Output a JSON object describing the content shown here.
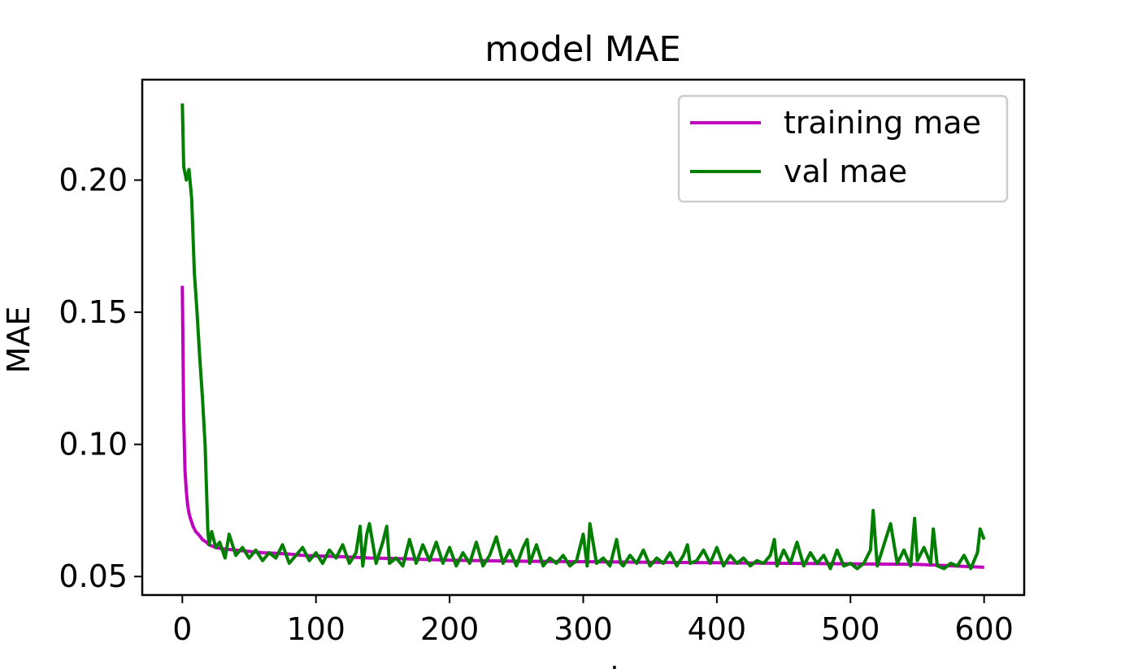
{
  "chart_data": {
    "type": "line",
    "title": "model MAE",
    "xlabel": "epoch",
    "ylabel": "MAE",
    "xlim": [
      -30,
      630
    ],
    "ylim": [
      0.043,
      0.238
    ],
    "xticks": [
      0,
      100,
      200,
      300,
      400,
      500,
      600
    ],
    "yticks": [
      0.05,
      0.1,
      0.15,
      0.2
    ],
    "ytick_labels": [
      "0.05",
      "0.10",
      "0.15",
      "0.20"
    ],
    "grid": false,
    "legend_position": "upper right",
    "series": [
      {
        "name": "training mae",
        "color": "#bf00bf",
        "x": [
          0,
          1,
          2,
          3,
          4,
          5,
          6,
          8,
          10,
          12,
          15,
          18,
          20,
          25,
          30,
          40,
          50,
          60,
          70,
          80,
          90,
          100,
          120,
          140,
          160,
          180,
          200,
          250,
          300,
          350,
          400,
          450,
          500,
          550,
          600
        ],
        "y": [
          0.16,
          0.11,
          0.09,
          0.082,
          0.077,
          0.074,
          0.072,
          0.069,
          0.067,
          0.066,
          0.064,
          0.063,
          0.062,
          0.061,
          0.0605,
          0.06,
          0.0595,
          0.059,
          0.0588,
          0.0585,
          0.058,
          0.0578,
          0.0575,
          0.057,
          0.0568,
          0.0565,
          0.0562,
          0.0558,
          0.0556,
          0.0554,
          0.0552,
          0.055,
          0.0548,
          0.0546,
          0.0535
        ]
      },
      {
        "name": "val mae",
        "color": "#007f00",
        "x": [
          0,
          1,
          3,
          5,
          7,
          9,
          11,
          13,
          15,
          17,
          19,
          20,
          22,
          25,
          28,
          32,
          35,
          40,
          45,
          50,
          55,
          60,
          65,
          70,
          75,
          80,
          85,
          90,
          95,
          100,
          105,
          110,
          115,
          120,
          125,
          130,
          133,
          135,
          138,
          140,
          145,
          150,
          153,
          155,
          160,
          165,
          170,
          175,
          180,
          185,
          190,
          195,
          200,
          205,
          210,
          215,
          220,
          225,
          230,
          235,
          240,
          245,
          250,
          255,
          258,
          260,
          265,
          270,
          275,
          280,
          285,
          290,
          295,
          300,
          303,
          305,
          310,
          315,
          320,
          325,
          328,
          330,
          335,
          340,
          345,
          350,
          355,
          360,
          365,
          370,
          375,
          378,
          380,
          385,
          390,
          395,
          400,
          405,
          410,
          415,
          420,
          425,
          430,
          435,
          440,
          443,
          445,
          450,
          455,
          460,
          465,
          470,
          475,
          480,
          485,
          490,
          495,
          500,
          505,
          510,
          515,
          517,
          520,
          525,
          530,
          535,
          540,
          545,
          548,
          550,
          555,
          560,
          562,
          565,
          570,
          575,
          580,
          585,
          590,
          595,
          597,
          600
        ],
        "y": [
          0.229,
          0.205,
          0.2,
          0.204,
          0.193,
          0.165,
          0.15,
          0.133,
          0.118,
          0.1,
          0.068,
          0.062,
          0.067,
          0.061,
          0.063,
          0.057,
          0.066,
          0.058,
          0.061,
          0.057,
          0.06,
          0.056,
          0.059,
          0.057,
          0.062,
          0.055,
          0.058,
          0.061,
          0.056,
          0.059,
          0.055,
          0.06,
          0.057,
          0.062,
          0.055,
          0.059,
          0.069,
          0.054,
          0.066,
          0.07,
          0.055,
          0.063,
          0.069,
          0.055,
          0.057,
          0.054,
          0.064,
          0.055,
          0.062,
          0.056,
          0.063,
          0.055,
          0.061,
          0.054,
          0.059,
          0.055,
          0.063,
          0.054,
          0.058,
          0.065,
          0.055,
          0.06,
          0.054,
          0.061,
          0.064,
          0.055,
          0.062,
          0.054,
          0.057,
          0.055,
          0.058,
          0.054,
          0.056,
          0.066,
          0.054,
          0.07,
          0.055,
          0.057,
          0.054,
          0.064,
          0.055,
          0.054,
          0.058,
          0.055,
          0.06,
          0.054,
          0.057,
          0.055,
          0.059,
          0.054,
          0.058,
          0.062,
          0.055,
          0.056,
          0.06,
          0.055,
          0.061,
          0.054,
          0.058,
          0.055,
          0.057,
          0.054,
          0.056,
          0.055,
          0.058,
          0.064,
          0.054,
          0.06,
          0.055,
          0.063,
          0.054,
          0.059,
          0.055,
          0.058,
          0.053,
          0.06,
          0.054,
          0.055,
          0.053,
          0.055,
          0.06,
          0.075,
          0.054,
          0.062,
          0.07,
          0.055,
          0.06,
          0.054,
          0.072,
          0.056,
          0.061,
          0.055,
          0.068,
          0.054,
          0.053,
          0.055,
          0.054,
          0.058,
          0.053,
          0.059,
          0.068,
          0.064
        ]
      }
    ]
  }
}
